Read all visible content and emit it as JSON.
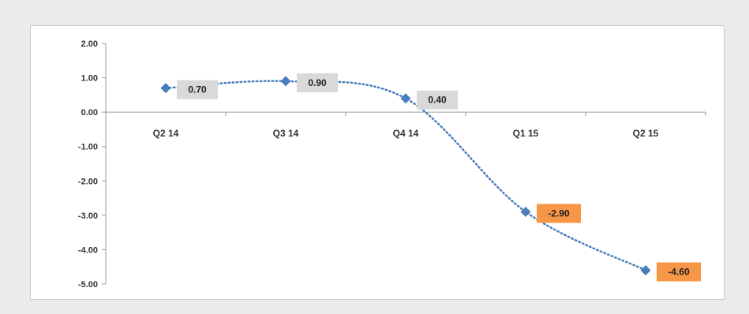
{
  "chart_data": {
    "type": "line",
    "title": "",
    "xlabel": "",
    "ylabel": "",
    "categories": [
      "Q2 14",
      "Q3 14",
      "Q4 14",
      "Q1 15",
      "Q2 15"
    ],
    "values": [
      0.7,
      0.9,
      0.4,
      -2.9,
      -4.6
    ],
    "data_labels": [
      "0.70",
      "0.90",
      "0.40",
      "-2.90",
      "-4.60"
    ],
    "y_ticks": [
      "2.00",
      "1.00",
      "0.00",
      "-1.00",
      "-2.00",
      "-3.00",
      "-4.00",
      "-5.00"
    ],
    "ylim": [
      -5,
      2
    ],
    "grid": false,
    "legend": "none",
    "line_style": "dotted smoothed",
    "colors": {
      "marker": "#4a7ebb",
      "line": "#4a7ebb",
      "label_positive_bg": "#d9d9d9",
      "label_negative_bg": "#f79646",
      "axis": "#9a9a9a"
    }
  }
}
